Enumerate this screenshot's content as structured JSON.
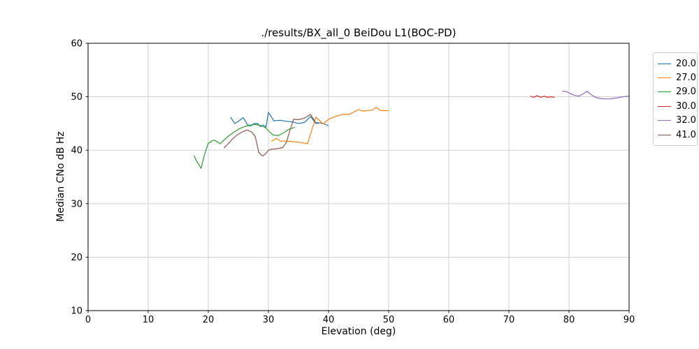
{
  "chart_data": {
    "type": "line",
    "title": "./results/BX_all_0 BeiDou L1(BOC-PD)",
    "xlabel": "Elevation (deg)",
    "ylabel": "Median CNo dB Hz",
    "xlim": [
      0,
      90
    ],
    "ylim": [
      10,
      60
    ],
    "xticks": [
      0,
      10,
      20,
      30,
      40,
      50,
      60,
      70,
      80,
      90
    ],
    "yticks": [
      10,
      20,
      30,
      40,
      50,
      60
    ],
    "grid": true,
    "grid_color": "#cccccc",
    "spine_color": "#000000",
    "legend_position": "outside-top-right",
    "series": [
      {
        "name": "20.0",
        "color": "#1f77b4",
        "points": [
          [
            23.7,
            46.2
          ],
          [
            24.4,
            45.0
          ],
          [
            25.0,
            45.4
          ],
          [
            25.8,
            46.1
          ],
          [
            26.5,
            44.8
          ],
          [
            27.0,
            44.5
          ],
          [
            27.6,
            45.0
          ],
          [
            28.2,
            45.0
          ],
          [
            28.7,
            44.4
          ],
          [
            29.2,
            44.7
          ],
          [
            29.6,
            44.3
          ],
          [
            30.0,
            47.1
          ],
          [
            30.9,
            45.5
          ],
          [
            32.0,
            45.6
          ],
          [
            33.0,
            45.4
          ],
          [
            34.0,
            45.3
          ],
          [
            35.0,
            45.0
          ],
          [
            36.0,
            45.2
          ],
          [
            37.0,
            46.3
          ],
          [
            37.9,
            45.0
          ],
          [
            38.6,
            45.1
          ],
          [
            39.3,
            44.9
          ],
          [
            40.0,
            44.6
          ]
        ]
      },
      {
        "name": "27.0",
        "color": "#ff7f0e",
        "points": [
          [
            30.5,
            41.7
          ],
          [
            31.4,
            42.2
          ],
          [
            32.0,
            41.7
          ],
          [
            33.0,
            41.7
          ],
          [
            34.0,
            41.6
          ],
          [
            35.0,
            41.5
          ],
          [
            36.0,
            41.3
          ],
          [
            36.5,
            41.2
          ],
          [
            37.9,
            46.2
          ],
          [
            39.1,
            44.9
          ],
          [
            40.0,
            45.8
          ],
          [
            41.1,
            46.3
          ],
          [
            42.3,
            46.7
          ],
          [
            43.4,
            46.7
          ],
          [
            44.5,
            47.3
          ],
          [
            45.0,
            47.6
          ],
          [
            45.7,
            47.3
          ],
          [
            46.4,
            47.4
          ],
          [
            47.3,
            47.5
          ],
          [
            47.9,
            48.0
          ],
          [
            48.7,
            47.4
          ],
          [
            50.0,
            47.4
          ]
        ]
      },
      {
        "name": "29.0",
        "color": "#2ca02c",
        "points": [
          [
            17.6,
            39.0
          ],
          [
            18.1,
            37.9
          ],
          [
            18.8,
            36.6
          ],
          [
            19.4,
            39.3
          ],
          [
            20.0,
            41.3
          ],
          [
            20.9,
            41.9
          ],
          [
            21.6,
            41.5
          ],
          [
            22.0,
            41.2
          ],
          [
            22.6,
            41.9
          ],
          [
            23.3,
            42.6
          ],
          [
            24.2,
            43.3
          ],
          [
            25.1,
            44.0
          ],
          [
            26.0,
            44.4
          ],
          [
            27.0,
            44.7
          ],
          [
            27.9,
            44.8
          ],
          [
            28.8,
            44.6
          ],
          [
            29.5,
            44.2
          ],
          [
            30.7,
            42.9
          ],
          [
            31.6,
            42.7
          ],
          [
            32.6,
            43.3
          ],
          [
            33.4,
            43.9
          ],
          [
            34.4,
            44.3
          ]
        ]
      },
      {
        "name": "30.0",
        "color": "#d62728",
        "points": [
          [
            73.6,
            50.1
          ],
          [
            74.1,
            49.9
          ],
          [
            74.7,
            50.2
          ],
          [
            75.3,
            49.9
          ],
          [
            75.9,
            50.1
          ],
          [
            76.4,
            49.9
          ],
          [
            77.0,
            50.0
          ],
          [
            77.6,
            49.9
          ]
        ]
      },
      {
        "name": "32.0",
        "color": "#9467bd",
        "points": [
          [
            78.9,
            51.0
          ],
          [
            79.5,
            51.0
          ],
          [
            80.0,
            50.7
          ],
          [
            80.8,
            50.3
          ],
          [
            81.6,
            50.1
          ],
          [
            82.3,
            50.5
          ],
          [
            83.0,
            51.0
          ],
          [
            83.8,
            50.3
          ],
          [
            84.6,
            49.8
          ],
          [
            85.7,
            49.6
          ],
          [
            86.9,
            49.6
          ],
          [
            88.0,
            49.8
          ],
          [
            89.0,
            50.0
          ],
          [
            90.0,
            50.1
          ]
        ]
      },
      {
        "name": "41.0",
        "color": "#8c564b",
        "points": [
          [
            22.6,
            40.4
          ],
          [
            23.3,
            41.2
          ],
          [
            24.1,
            42.2
          ],
          [
            25.0,
            43.0
          ],
          [
            25.8,
            43.5
          ],
          [
            26.5,
            43.8
          ],
          [
            27.2,
            43.4
          ],
          [
            27.8,
            42.6
          ],
          [
            28.4,
            39.6
          ],
          [
            29.0,
            38.9
          ],
          [
            29.6,
            39.4
          ],
          [
            30.0,
            40.0
          ],
          [
            30.6,
            40.2
          ],
          [
            31.5,
            40.3
          ],
          [
            32.4,
            40.5
          ],
          [
            33.0,
            41.5
          ],
          [
            33.6,
            43.8
          ],
          [
            34.2,
            45.8
          ],
          [
            35.0,
            45.7
          ],
          [
            36.0,
            46.0
          ],
          [
            37.0,
            46.7
          ],
          [
            37.9,
            45.1
          ],
          [
            38.3,
            45.2
          ]
        ]
      }
    ]
  }
}
